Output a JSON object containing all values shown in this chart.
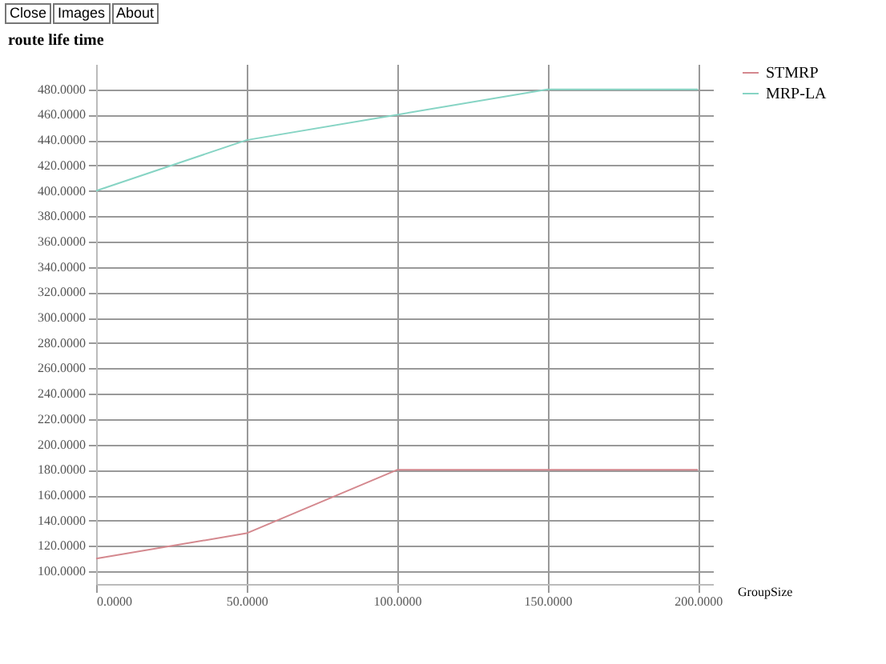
{
  "chart_data": {
    "type": "line",
    "title": "route life time",
    "xlabel": "GroupSize",
    "annotations": [
      "Close",
      "Images",
      "About"
    ],
    "x": [
      0,
      50,
      100,
      150,
      200
    ],
    "series": [
      {
        "name": "STMRP",
        "color": "#d4888e",
        "values": [
          110,
          130,
          180,
          180,
          180
        ]
      },
      {
        "name": "MRP-LA",
        "color": "#86d4c4",
        "values": [
          400,
          440,
          460,
          480,
          480
        ]
      }
    ],
    "xlim": [
      0,
      205
    ],
    "xticks": [
      {
        "value": 0,
        "label": "0.0000"
      },
      {
        "value": 50,
        "label": "50.0000"
      },
      {
        "value": 100,
        "label": "100.0000"
      },
      {
        "value": 150,
        "label": "150.0000"
      },
      {
        "value": 200,
        "label": "200.0000"
      }
    ],
    "ylim": [
      90,
      500
    ],
    "yticks": [
      {
        "value": 100,
        "label": "100.0000"
      },
      {
        "value": 120,
        "label": "120.0000"
      },
      {
        "value": 140,
        "label": "140.0000"
      },
      {
        "value": 160,
        "label": "160.0000"
      },
      {
        "value": 180,
        "label": "180.0000"
      },
      {
        "value": 200,
        "label": "200.0000"
      },
      {
        "value": 220,
        "label": "220.0000"
      },
      {
        "value": 240,
        "label": "240.0000"
      },
      {
        "value": 260,
        "label": "260.0000"
      },
      {
        "value": 280,
        "label": "280.0000"
      },
      {
        "value": 300,
        "label": "300.0000"
      },
      {
        "value": 320,
        "label": "320.0000"
      },
      {
        "value": 340,
        "label": "340.0000"
      },
      {
        "value": 360,
        "label": "360.0000"
      },
      {
        "value": 380,
        "label": "380.0000"
      },
      {
        "value": 400,
        "label": "400.0000"
      },
      {
        "value": 420,
        "label": "420.0000"
      },
      {
        "value": 440,
        "label": "440.0000"
      },
      {
        "value": 460,
        "label": "460.0000"
      },
      {
        "value": 480,
        "label": "480.0000"
      }
    ],
    "grid": true,
    "legend": "right",
    "marker": "none",
    "line_style": "solid"
  }
}
